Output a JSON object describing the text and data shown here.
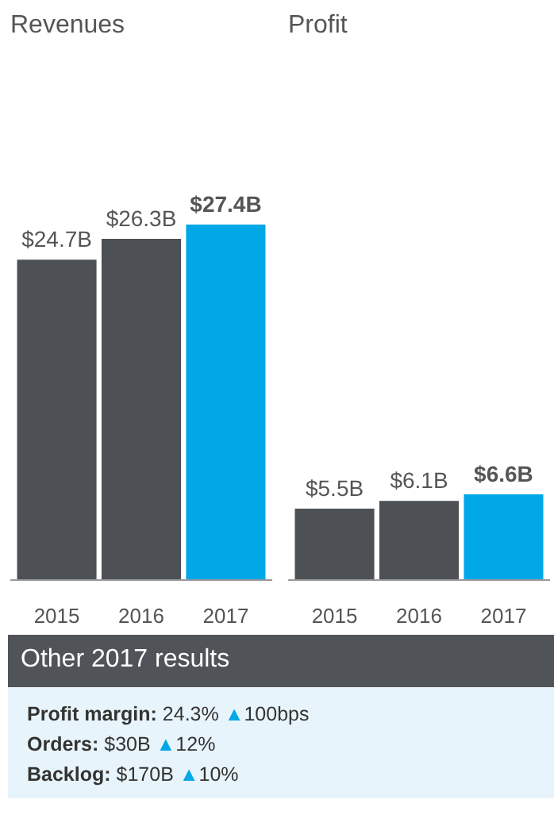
{
  "chart_data": [
    {
      "type": "bar",
      "title": "Revenues",
      "categories": [
        "2015",
        "2016",
        "2017"
      ],
      "values": [
        24.7,
        26.3,
        27.4
      ],
      "colors": [
        "#4d5054",
        "#4d5054",
        "#00a8e8"
      ],
      "value_labels": [
        "$24.7B",
        "$26.3B",
        "$27.4B"
      ],
      "tick_labels": "x"
    },
    {
      "type": "bar",
      "title": "Profit",
      "categories": [
        "2015",
        "2016",
        "2017"
      ],
      "values": [
        5.5,
        6.1,
        6.6
      ],
      "colors": [
        "#4d5054",
        "#4d5054",
        "#00a8e8"
      ],
      "value_labels": [
        "$5.5B",
        "$6.1B",
        "$6.6B"
      ],
      "tick_labels": "x"
    },
    {
      "type": "other",
      "title": "Other 2017 results",
      "annotations": [
        "Profit margin: 24.3% ▲100bps",
        "Orders: $30B ▲12%",
        "Backlog: $170B ▲10%"
      ]
    }
  ]
}
